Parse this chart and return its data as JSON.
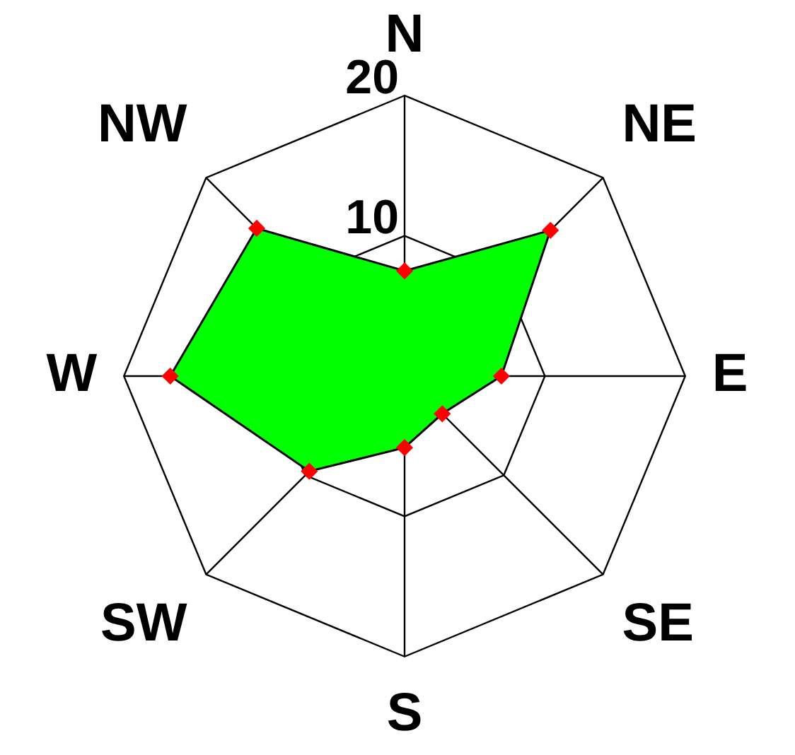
{
  "chart_data": {
    "type": "radar",
    "categories": [
      "N",
      "NE",
      "E",
      "SE",
      "S",
      "SW",
      "W",
      "NW"
    ],
    "series": [
      {
        "color": "#00ff00",
        "values": [
          7.5,
          14.7,
          6.9,
          3.8,
          5.1,
          9.6,
          16.7,
          14.9
        ]
      }
    ],
    "ylim": [
      0,
      20
    ],
    "yticks": [
      10,
      20
    ],
    "grid": true,
    "marker": "diamond",
    "legend": false
  }
}
